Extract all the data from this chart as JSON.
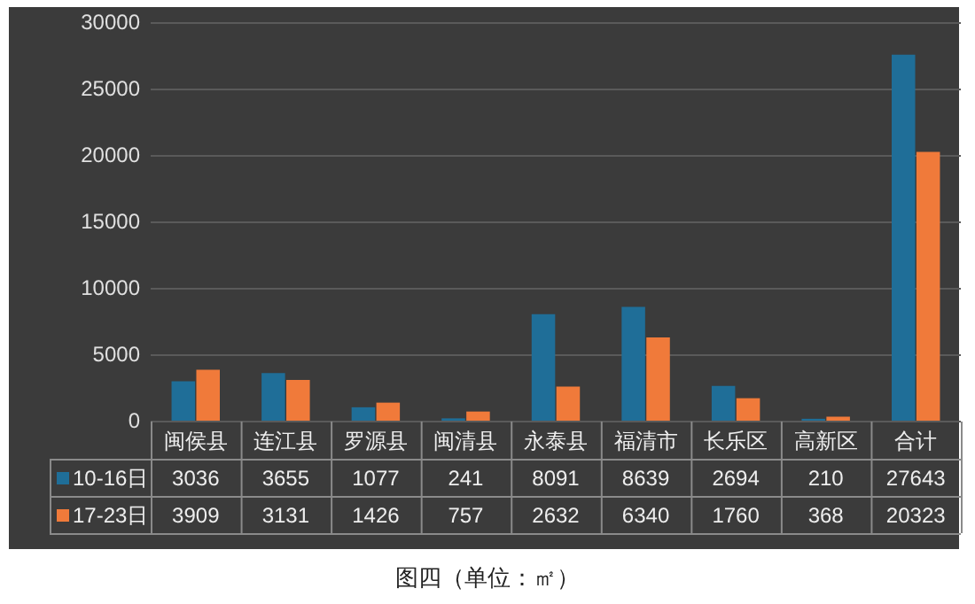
{
  "chart_data": {
    "type": "bar",
    "title": "图四（单位：㎡）",
    "categories": [
      "闽侯县",
      "连江县",
      "罗源县",
      "闽清县",
      "永泰县",
      "福清市",
      "长乐区",
      "高新区",
      "合计"
    ],
    "series": [
      {
        "name": "10-16日",
        "color": "#1f6e98",
        "values": [
          3036,
          3655,
          1077,
          241,
          8091,
          8639,
          2694,
          210,
          27643
        ]
      },
      {
        "name": "17-23日",
        "color": "#f07a3a",
        "values": [
          3909,
          3131,
          1426,
          757,
          2632,
          6340,
          1760,
          368,
          20323
        ]
      }
    ],
    "ylim": [
      0,
      30000
    ],
    "yticks": [
      0,
      5000,
      10000,
      15000,
      20000,
      25000,
      30000
    ],
    "grid": "y",
    "legend": "bottom",
    "data_labels": true
  }
}
